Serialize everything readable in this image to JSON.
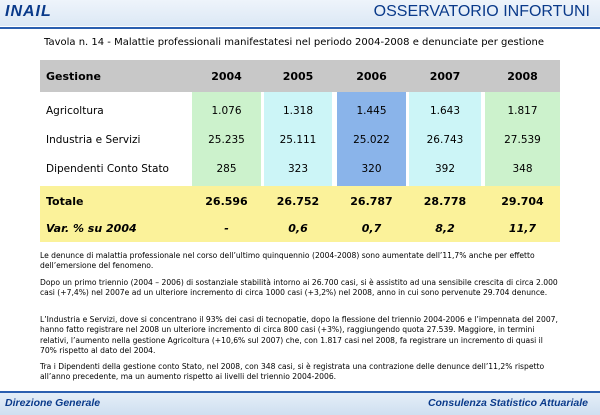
{
  "header": {
    "logo": "INAIL",
    "title": "OSSERVATORIO INFORTUNI"
  },
  "table": {
    "title": "Tavola n. 14 - Malattie professionali manifestatesi nel periodo 2004-2008 e denunciate per gestione",
    "header": {
      "label": "Gestione",
      "years": [
        "2004",
        "2005",
        "2006",
        "2007",
        "2008"
      ]
    },
    "rows": [
      {
        "label": "Agricoltura",
        "values": [
          "1.076",
          "1.318",
          "1.445",
          "1.643",
          "1.817"
        ]
      },
      {
        "label": "Industria e Servizi",
        "values": [
          "25.235",
          "25.111",
          "25.022",
          "26.743",
          "27.539"
        ]
      },
      {
        "label": "Dipendenti Conto Stato",
        "values": [
          "285",
          "323",
          "320",
          "392",
          "348"
        ]
      }
    ],
    "total": {
      "label": "Totale",
      "values": [
        "26.596",
        "26.752",
        "26.787",
        "28.778",
        "29.704"
      ]
    },
    "variation": {
      "label": "Var. % su 2004",
      "values": [
        "-",
        "0,6",
        "0,7",
        "8,2",
        "11,7"
      ]
    },
    "colors": {
      "header_bg": "#c8c8c8",
      "year_bg": [
        "#ccf2cc",
        "#ccf5f7",
        "#8ab4ea",
        "#ccf5f7",
        "#ccf2cc"
      ],
      "total_bg": "#fbf29a"
    }
  },
  "paragraphs": [
    "Le denunce di malattia professionale nel corso dell’ultimo quinquennio (2004-2008) sono aumentate dell’11,7% anche per effetto dell’emersione del fenomeno.",
    "Dopo un primo triennio (2004 – 2006) di sostanziale stabilità intorno ai 26.700 casi, si è assistito ad una sensibile crescita di circa 2.000 casi (+7,4%) nel 2007e ad un ulteriore incremento di circa 1000 casi (+3,2%) nel 2008, anno in cui sono pervenute 29.704 denunce.",
    "L’Industria e Servizi, dove si concentrano il 93% dei casi di tecnopatie, dopo la flessione del triennio 2004-2006 e l’impennata del 2007, hanno fatto registrare nel 2008 un ulteriore incremento di circa 800 casi (+3%), raggiungendo quota 27.539. Maggiore, in termini relativi, l’aumento nella gestione Agricoltura (+10,6% sul 2007) che, con 1.817 casi nel 2008, fa registrare un incremento di quasi il 70% rispetto al dato del 2004.",
    "Tra i Dipendenti della gestione conto Stato, nel 2008, con 348 casi, si è registrata una contrazione delle denunce dell’11,2% rispetto all’anno precedente, ma un aumento rispetto ai livelli del  triennio 2004-2006."
  ],
  "footer": {
    "left": "Direzione Generale",
    "right": "Consulenza Statistico Attuariale"
  }
}
